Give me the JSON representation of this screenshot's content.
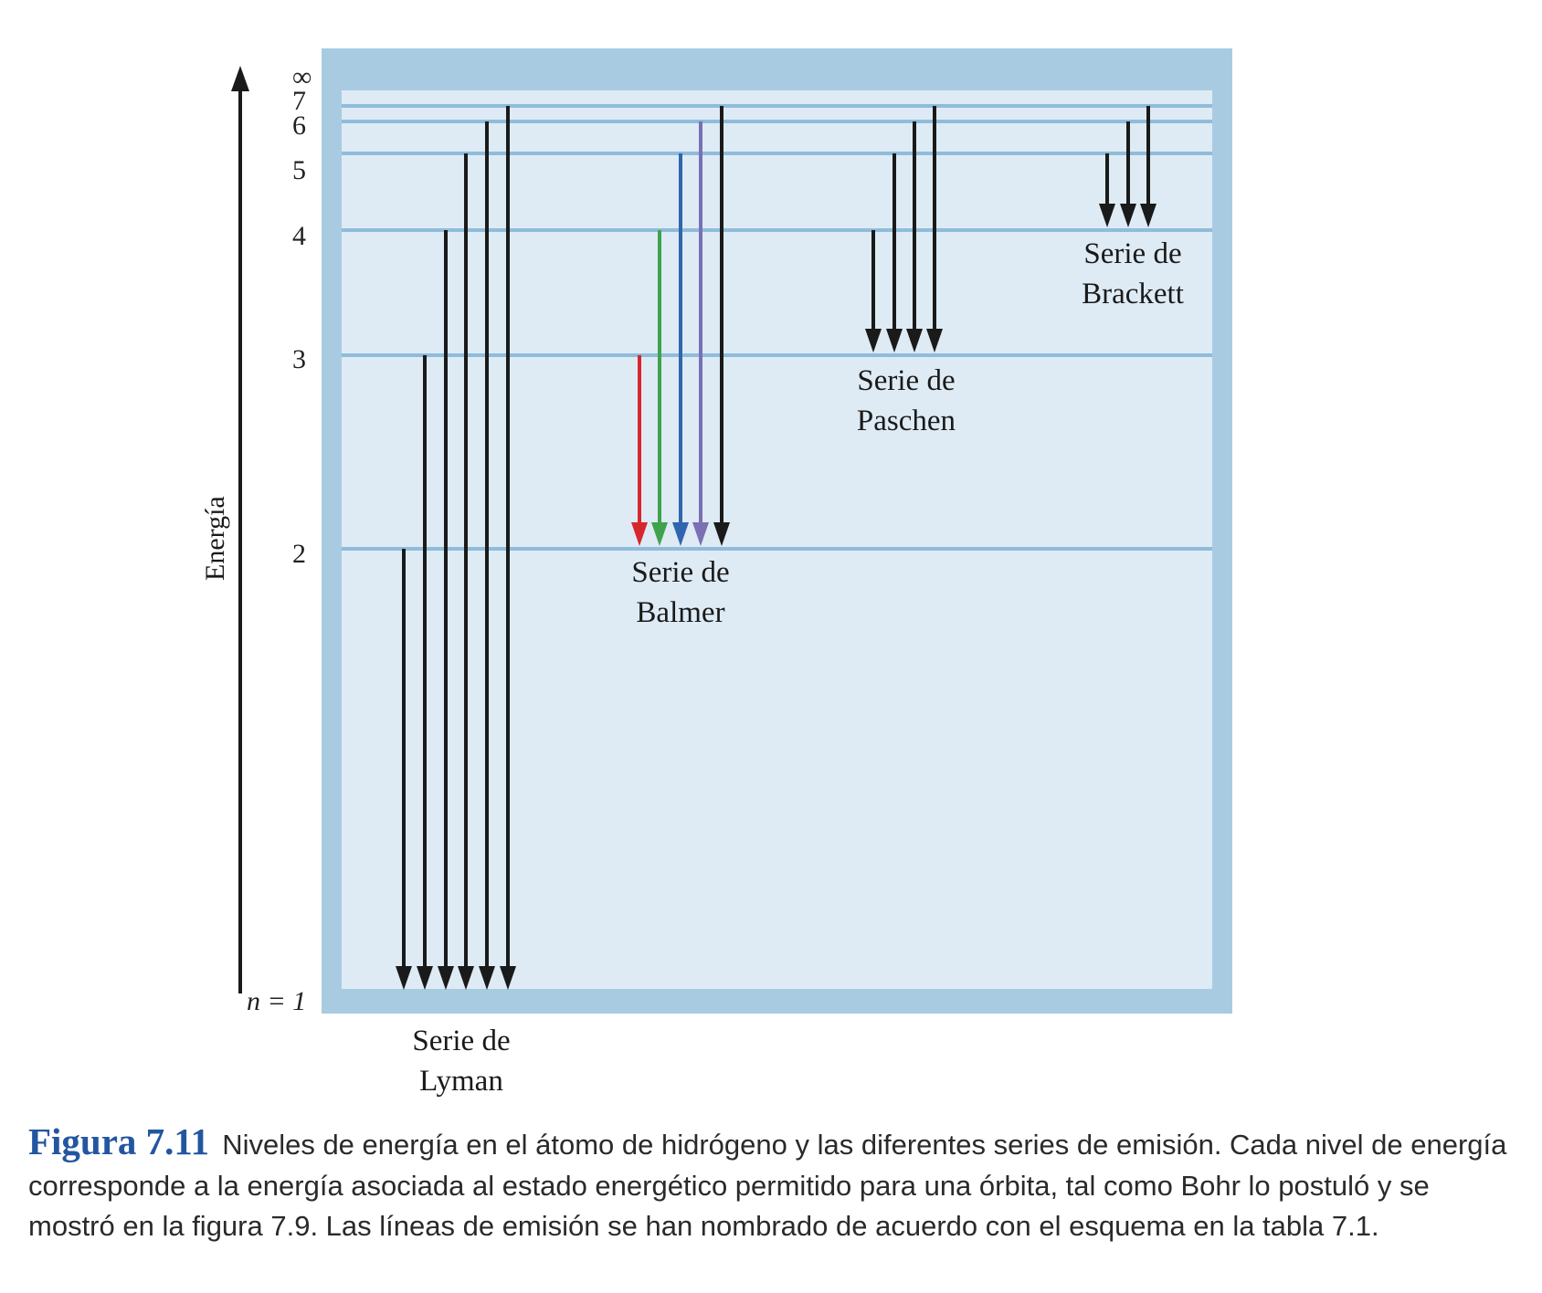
{
  "colors": {
    "frame_outer": "#a9cbe2",
    "frame_inner": "#deebf5",
    "level_line": "#8fbcdb",
    "arrow_black": "#1a1a1a",
    "balmer_red": "#d8262d",
    "balmer_green": "#3fa34d",
    "balmer_blue": "#2f66ad",
    "balmer_violet": "#7b70b3",
    "caption_accent": "#2356a0"
  },
  "axis": {
    "label": "Energía"
  },
  "levels": [
    {
      "n": "∞",
      "label": "∞"
    },
    {
      "n": 7,
      "label": "7"
    },
    {
      "n": 6,
      "label": "6"
    },
    {
      "n": 5,
      "label": "5"
    },
    {
      "n": 4,
      "label": "4"
    },
    {
      "n": 3,
      "label": "3"
    },
    {
      "n": 2,
      "label": "2"
    },
    {
      "n": 1,
      "label": "n = 1"
    }
  ],
  "series": [
    {
      "name_line1": "Serie de",
      "name_line2": "Lyman",
      "lower_level": 1,
      "transitions_from": [
        2,
        3,
        4,
        5,
        6,
        7
      ],
      "colors": [
        "#1a1a1a",
        "#1a1a1a",
        "#1a1a1a",
        "#1a1a1a",
        "#1a1a1a",
        "#1a1a1a"
      ]
    },
    {
      "name_line1": "Serie de",
      "name_line2": "Balmer",
      "lower_level": 2,
      "transitions_from": [
        3,
        4,
        5,
        6,
        7
      ],
      "colors": [
        "#d8262d",
        "#3fa34d",
        "#2f66ad",
        "#7b70b3",
        "#1a1a1a"
      ]
    },
    {
      "name_line1": "Serie de",
      "name_line2": "Paschen",
      "lower_level": 3,
      "transitions_from": [
        4,
        5,
        6,
        7
      ],
      "colors": [
        "#1a1a1a",
        "#1a1a1a",
        "#1a1a1a",
        "#1a1a1a"
      ]
    },
    {
      "name_line1": "Serie de",
      "name_line2": "Brackett",
      "lower_level": 4,
      "transitions_from": [
        5,
        6,
        7
      ],
      "colors": [
        "#1a1a1a",
        "#1a1a1a",
        "#1a1a1a"
      ]
    }
  ],
  "caption": {
    "figure_number": "Figura 7.11",
    "text": "Niveles de energía en el átomo de hidrógeno y las diferentes series de emisión. Cada nivel de energía corresponde a la energía asociada al estado energético permitido para una órbita, tal como Bohr lo postuló y se mostró en la figura 7.9. Las líneas de emisión se han nombrado de acuerdo con el esquema en la tabla 7.1."
  }
}
